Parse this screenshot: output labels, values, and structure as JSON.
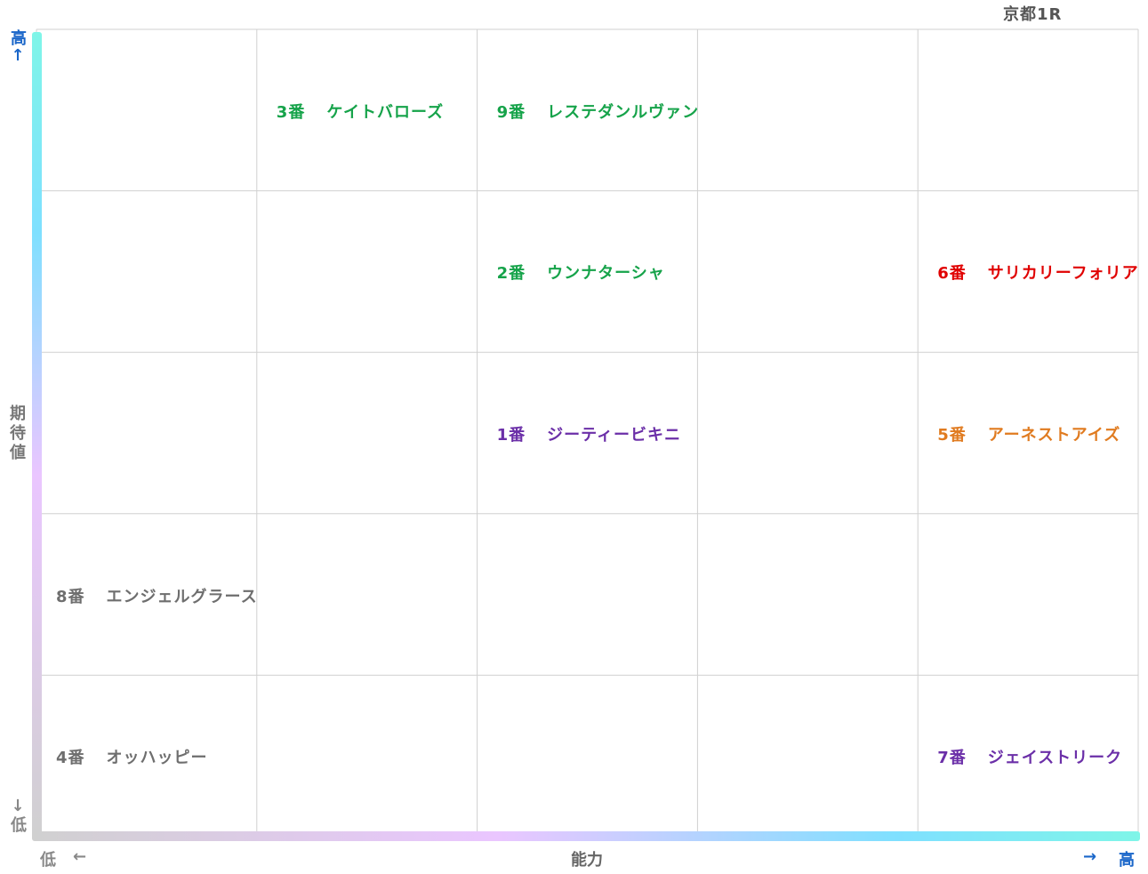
{
  "race": {
    "title": "京都1R"
  },
  "axes": {
    "y_label": "期待値",
    "y_high": "高",
    "y_low": "低",
    "y_high_arrow": "↑",
    "y_low_arrow": "↓",
    "x_label": "能力",
    "x_high": "高",
    "x_low": "低",
    "x_high_arrow": "→",
    "x_low_arrow": "←"
  },
  "colors": {
    "green": "#16a34a",
    "purple": "#6b2fa8",
    "red": "#e00000",
    "orange": "#e07b20",
    "gray": "#6e6e6e",
    "grid": "#d0d0d0",
    "axis_gradient_top": "#7ff5e8",
    "axis_gradient_mid_cyan": "#7fe0ff",
    "axis_gradient_mid_lilac": "#eac6ff",
    "axis_gradient_bottom": "#d0d0d0"
  },
  "chart_data": {
    "type": "table",
    "title": "京都1R",
    "xlabel": "能力",
    "ylabel": "期待値",
    "columns": 5,
    "rows": 5,
    "entries": [
      {
        "number": "3番",
        "name": "ケイトバローズ",
        "col": 2,
        "row": 1,
        "color": "green"
      },
      {
        "number": "9番",
        "name": "レステダンルヴァン",
        "col": 3,
        "row": 1,
        "color": "green"
      },
      {
        "number": "2番",
        "name": "ウンナターシャ",
        "col": 3,
        "row": 2,
        "color": "green"
      },
      {
        "number": "6番",
        "name": "サリカリーフォリア",
        "col": 5,
        "row": 2,
        "color": "red"
      },
      {
        "number": "1番",
        "name": "ジーティービキニ",
        "col": 3,
        "row": 3,
        "color": "purple"
      },
      {
        "number": "5番",
        "name": "アーネストアイズ",
        "col": 5,
        "row": 3,
        "color": "orange"
      },
      {
        "number": "8番",
        "name": "エンジェルグラース",
        "col": 1,
        "row": 4,
        "color": "gray"
      },
      {
        "number": "4番",
        "name": "オッハッピー",
        "col": 1,
        "row": 5,
        "color": "gray"
      },
      {
        "number": "7番",
        "name": "ジェイストリーク",
        "col": 5,
        "row": 5,
        "color": "purple"
      }
    ]
  }
}
